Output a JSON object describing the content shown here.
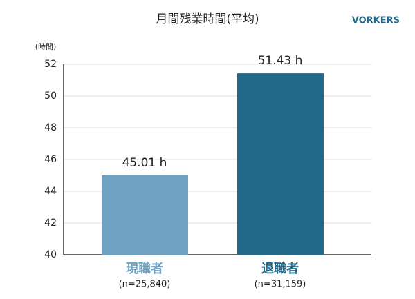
{
  "chart_data": {
    "type": "bar",
    "title": "月間残業時間(平均)",
    "brand": "VORKERS",
    "y_label": "(時間)",
    "categories": [
      "現職者",
      "退職者"
    ],
    "category_notes": [
      "(n=25,840)",
      "(n=31,159)"
    ],
    "values": [
      45.01,
      51.43
    ],
    "value_labels": [
      "45.01 h",
      "51.43 h"
    ],
    "colors": [
      "#6fa2c2",
      "#236a8a"
    ],
    "ylim": [
      40,
      52
    ],
    "yticks": [
      40,
      42,
      44,
      46,
      48,
      50,
      52
    ],
    "grid": true
  }
}
